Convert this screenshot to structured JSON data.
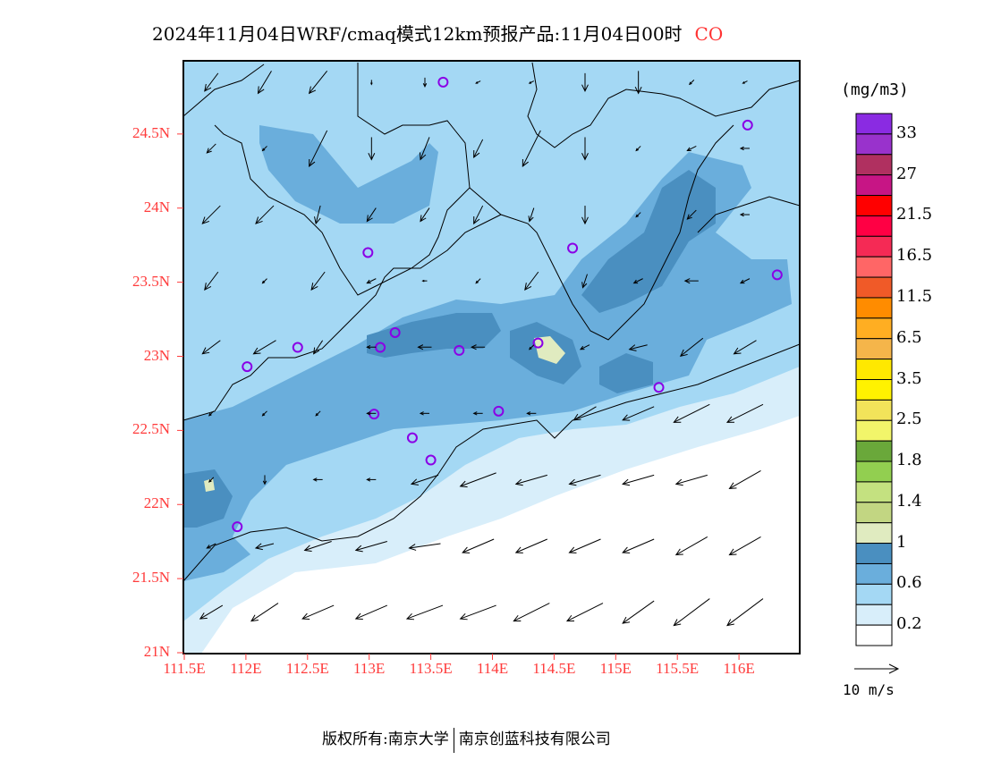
{
  "title": {
    "main": "2024年11月04日WRF/cmaq模式12km预报产品:11月04日00时",
    "species": "CO"
  },
  "chart_data": {
    "type": "map",
    "title": "2024年11月04日WRF/cmaq模式12km预报产品:11月04日00时 CO",
    "lon_range": [
      111.5,
      116.5
    ],
    "lat_range": [
      21,
      25
    ],
    "x_ticks": [
      "111.5E",
      "112E",
      "112.5E",
      "113E",
      "113.5E",
      "114E",
      "114.5E",
      "115E",
      "115.5E",
      "116E"
    ],
    "x_tick_values": [
      111.5,
      112,
      112.5,
      113,
      113.5,
      114,
      114.5,
      115,
      115.5,
      116
    ],
    "y_ticks": [
      "21N",
      "21.5N",
      "22N",
      "22.5N",
      "23N",
      "23.5N",
      "24N",
      "24.5N"
    ],
    "y_tick_values": [
      21,
      21.5,
      22,
      22.5,
      23,
      23.5,
      24,
      24.5
    ],
    "colorbar": {
      "unit": "(mg/m3)",
      "colors": [
        "#8a2be2",
        "#9932cc",
        "#b03060",
        "#c71585",
        "#ff0000",
        "#ff0044",
        "#f52a55",
        "#ff6666",
        "#f05a28",
        "#ff8c00",
        "#ffae22",
        "#f5b54a",
        "#ffe800",
        "#fff200",
        "#f2e35a",
        "#f2f56a",
        "#6aa83a",
        "#92cf50",
        "#c4e180",
        "#c2d682",
        "#e0ebc0",
        "#4a8fc0",
        "#6aaedc",
        "#a4d8f4",
        "#d8eefa",
        "#ffffff"
      ],
      "labels": [
        "33",
        "27",
        "21.5",
        "16.5",
        "11.5",
        "6.5",
        "3.5",
        "2.5",
        "1.8",
        "1.4",
        "1",
        "0.6",
        "0.2"
      ]
    },
    "wind_reference": {
      "label": "10 m/s",
      "speed": 10
    },
    "wind_grid": {
      "lon0": 111.72,
      "dlon": 0.433,
      "lat0": 24.85,
      "dlat": -0.447,
      "uv": [
        [
          [
            -3,
            -4
          ],
          [
            -3,
            -5
          ],
          [
            -4,
            -5
          ],
          [
            0,
            -1
          ],
          [
            0,
            -2
          ],
          [
            -1,
            -0.5
          ],
          [
            -1,
            -0.5
          ],
          [
            0,
            -4
          ],
          [
            0,
            -5
          ],
          [
            -1,
            -1
          ],
          [
            -1,
            -0.5
          ]
        ],
        [
          [
            -2,
            -2
          ],
          [
            -1,
            -1
          ],
          [
            -4,
            -8
          ],
          [
            0,
            -5
          ],
          [
            -2,
            -5
          ],
          [
            -2,
            -4
          ],
          [
            -4,
            -8
          ],
          [
            0,
            -5
          ],
          [
            -1,
            -1
          ],
          [
            -2,
            -1
          ],
          [
            -2,
            0
          ]
        ],
        [
          [
            -4,
            -4
          ],
          [
            -4,
            -4
          ],
          [
            -1,
            -4
          ],
          [
            -2,
            -3
          ],
          [
            -2,
            -3
          ],
          [
            -2,
            -4
          ],
          [
            -1,
            -3
          ],
          [
            0,
            -4
          ],
          [
            -1,
            -1
          ],
          [
            -2,
            -2
          ],
          [
            -2,
            0
          ]
        ],
        [
          [
            -3,
            -4
          ],
          [
            -1,
            -1
          ],
          [
            -3,
            -4
          ],
          [
            -2,
            -1
          ],
          [
            -1,
            0
          ],
          [
            -1,
            -1
          ],
          [
            -3,
            -4
          ],
          [
            -1,
            -3
          ],
          [
            -2,
            -1
          ],
          [
            -3,
            0
          ],
          [
            -2,
            -1
          ]
        ],
        [
          [
            -4,
            -3
          ],
          [
            -5,
            -3
          ],
          [
            -2,
            -3
          ],
          [
            -2,
            0
          ],
          [
            -3,
            0
          ],
          [
            -3,
            0
          ],
          [
            -1,
            -1
          ],
          [
            -2,
            -1
          ],
          [
            -4,
            -1
          ],
          [
            -5,
            -4
          ],
          [
            -5,
            -3
          ]
        ],
        [
          [
            -1,
            -1
          ],
          [
            -1,
            -1
          ],
          [
            -1,
            -1
          ],
          [
            -2,
            0
          ],
          [
            -2,
            0
          ],
          [
            -2,
            0
          ],
          [
            -2,
            0
          ],
          [
            -5,
            -3
          ],
          [
            -7,
            -3
          ],
          [
            -8,
            -4
          ],
          [
            -8,
            -4
          ]
        ],
        [
          [
            -1,
            -1
          ],
          [
            0,
            -2
          ],
          [
            -2,
            0
          ],
          [
            -2,
            0
          ],
          [
            -6,
            -2
          ],
          [
            -8,
            -3
          ],
          [
            -7,
            -2
          ],
          [
            -7,
            -2
          ],
          [
            -7,
            -2
          ],
          [
            -7,
            -2
          ],
          [
            -7,
            -4
          ]
        ],
        [
          [
            -2,
            -1
          ],
          [
            -4,
            -1
          ],
          [
            -6,
            -2
          ],
          [
            -7,
            -2
          ],
          [
            -7,
            -1
          ],
          [
            -7,
            -3
          ],
          [
            -7,
            -3
          ],
          [
            -7,
            -3
          ],
          [
            -7,
            -3
          ],
          [
            -7,
            -4
          ],
          [
            -7,
            -4
          ]
        ],
        [
          [
            -5,
            -3
          ],
          [
            -6,
            -4
          ],
          [
            -7,
            -3
          ],
          [
            -7,
            -3
          ],
          [
            -8,
            -3
          ],
          [
            -8,
            -3
          ],
          [
            -8,
            -4
          ],
          [
            -8,
            -4
          ],
          [
            -7,
            -5
          ],
          [
            -8,
            -6
          ],
          [
            -8,
            -6
          ]
        ]
      ]
    },
    "stations": [
      [
        113.6,
        24.85
      ],
      [
        116.07,
        24.56
      ],
      [
        112.99,
        23.7
      ],
      [
        114.65,
        23.73
      ],
      [
        116.31,
        23.55
      ],
      [
        112.01,
        22.93
      ],
      [
        112.42,
        23.06
      ],
      [
        113.09,
        23.06
      ],
      [
        113.21,
        23.16
      ],
      [
        113.73,
        23.04
      ],
      [
        114.37,
        23.09
      ],
      [
        115.35,
        22.79
      ],
      [
        113.04,
        22.61
      ],
      [
        113.35,
        22.45
      ],
      [
        114.05,
        22.63
      ],
      [
        113.5,
        22.3
      ],
      [
        111.93,
        21.85
      ]
    ]
  },
  "footer": {
    "left": "版权所有:南京大学",
    "right": "南京创蓝科技有限公司"
  }
}
